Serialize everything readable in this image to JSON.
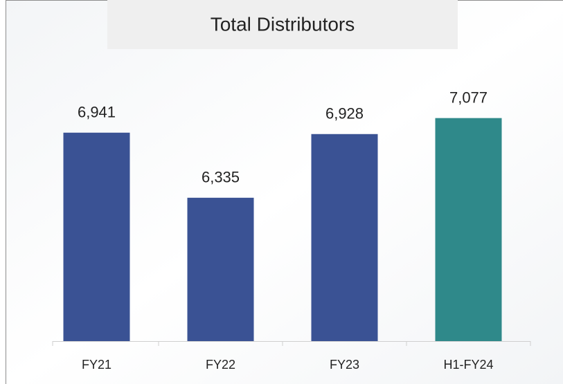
{
  "chart_data": {
    "type": "bar",
    "title": "Total Distributors",
    "categories": [
      "FY21",
      "FY22",
      "FY23",
      "H1-FY24"
    ],
    "values": [
      6941,
      6335,
      6928,
      7077
    ],
    "value_labels": [
      "6,941",
      "6,335",
      "6,928",
      "7,077"
    ],
    "colors": [
      "#3a5294",
      "#3a5294",
      "#3a5294",
      "#2f898a"
    ],
    "ylim": [
      5000,
      7500
    ]
  }
}
